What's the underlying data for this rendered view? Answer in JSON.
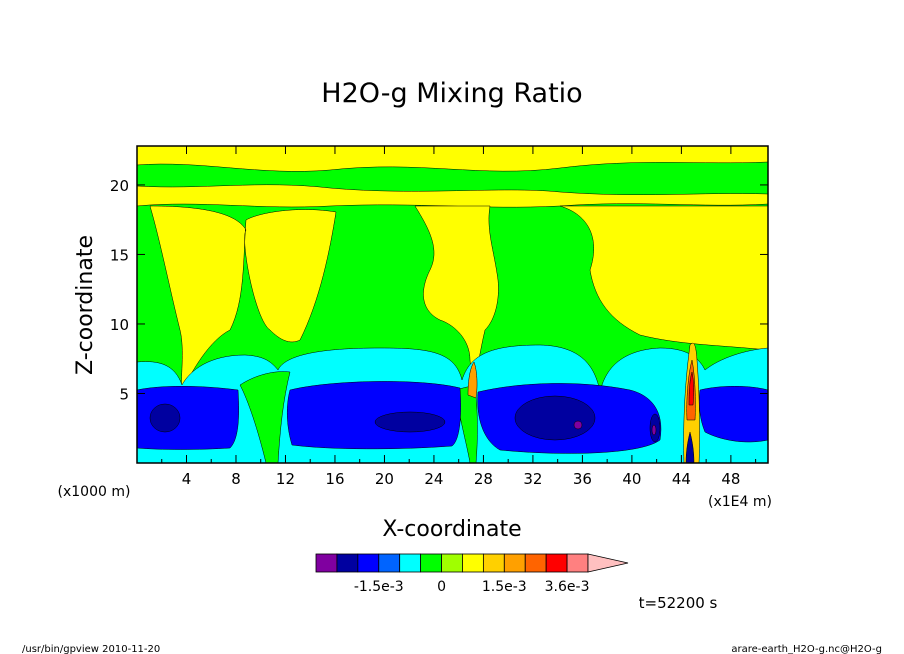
{
  "chart_data": {
    "type": "heatmap",
    "title": "H2O-g Mixing Ratio",
    "xlabel": "X-coordinate",
    "ylabel": "Z-coordinate",
    "x_unit_left": "(x1000 m)",
    "x_unit_right": "(x1E4 m)",
    "xlim": [
      0,
      51
    ],
    "ylim": [
      0,
      22.8
    ],
    "x_ticks": [
      4,
      8,
      12,
      16,
      20,
      24,
      28,
      32,
      36,
      40,
      44,
      48
    ],
    "y_ticks": [
      5,
      10,
      15,
      20
    ],
    "colorbar": {
      "colors": [
        "#8000a0",
        "#0000a0",
        "#0000ff",
        "#0064ff",
        "#00ffff",
        "#00ff00",
        "#a0ff00",
        "#ffff00",
        "#ffd000",
        "#ffa000",
        "#ff6400",
        "#ff0000",
        "#ff8080",
        "#ffc0c0"
      ],
      "tick_labels": [
        "-1.5e-3",
        "0",
        "1.5e-3",
        "3.6e-3"
      ],
      "tick_index": [
        3,
        6,
        9,
        12
      ]
    },
    "grid": false,
    "legend": "colorbar-bottom",
    "regions": [
      {
        "level": "low",
        "color": "#0000ff",
        "description": "negative anomaly band 0-5 km"
      },
      {
        "level": "mid-low",
        "color": "#00ffff",
        "description": "band 3-7 km"
      },
      {
        "level": "zero",
        "color": "#00ff00",
        "description": "background"
      },
      {
        "level": "positive",
        "color": "#ffff00",
        "description": "upper tongues"
      }
    ]
  },
  "time_label": "t=52200 s",
  "footer": {
    "left": "/usr/bin/gpview   2010-11-20",
    "right": "arare-earth_H2O-g.nc@H2O-g"
  }
}
